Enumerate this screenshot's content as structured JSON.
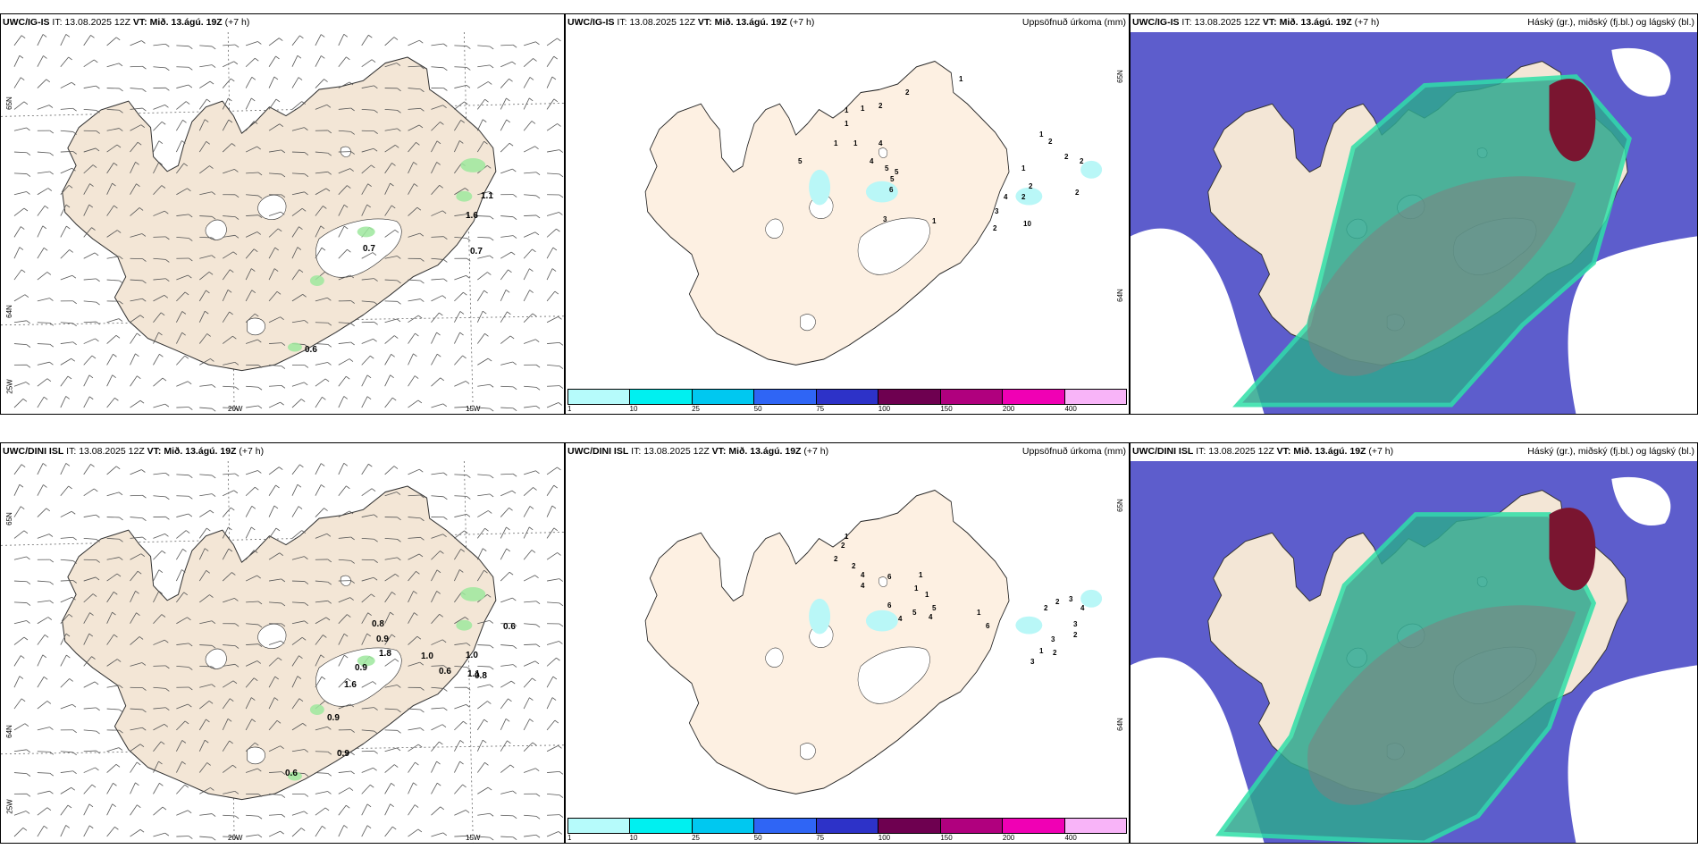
{
  "rows": [
    {
      "model": "UWC/IG-IS",
      "it_label": "IT:",
      "it_value": "13.08.2025 12Z",
      "vt_label": "VT:",
      "vt_value": "Mið. 13.ágú. 19Z",
      "lead": "(+7 h)",
      "wind_values": [
        "1.1",
        "1.6",
        "0.7",
        "0.7",
        "0.6"
      ],
      "precip_values": [
        "1",
        "1",
        "1",
        "2",
        "2",
        "1",
        "1",
        "1",
        "4",
        "5",
        "4",
        "5",
        "5",
        "5",
        "6",
        "1",
        "2",
        "1",
        "2",
        "2",
        "4",
        "3",
        "2",
        "10",
        "2",
        "2",
        "2",
        "3",
        "1"
      ]
    },
    {
      "model": "UWC/DINI ISL",
      "it_label": "IT:",
      "it_value": "13.08.2025 12Z",
      "vt_label": "VT:",
      "vt_value": "Mið. 13.ágú. 19Z",
      "lead": "(+7 h)",
      "wind_values": [
        "0.8",
        "0.9",
        "1.8",
        "0.9",
        "1.6",
        "1.0",
        "0.6",
        "1.0",
        "1.1",
        "0.6",
        "0.8",
        "0.9",
        "0.9",
        "0.6"
      ],
      "precip_values": [
        "1",
        "2",
        "2",
        "2",
        "4",
        "4",
        "6",
        "1",
        "1",
        "6",
        "1",
        "5",
        "5",
        "4",
        "4",
        "1",
        "6",
        "2",
        "2",
        "3",
        "3",
        "4",
        "3",
        "2",
        "1",
        "2",
        "3"
      ]
    }
  ],
  "precip_title": "Uppsöfnuð úrkoma (mm)",
  "cloud_title": "Háský (gr.), miðský (fj.bl.) og lágský (bl.)",
  "axis_labels": {
    "lat65": "65N",
    "lat64": "64N",
    "lon25": "25W",
    "lon20": "20W",
    "lon15": "15W"
  },
  "colorbar": {
    "ticks": [
      "1",
      "10",
      "25",
      "50",
      "75",
      "100",
      "150",
      "200",
      "400"
    ],
    "colors": [
      "#b6fbfb",
      "#00f0f0",
      "#00c8f0",
      "#2f65f5",
      "#2d32c8",
      "#6e0050",
      "#b0007e",
      "#f000b4",
      "#f8b4f8"
    ]
  },
  "colors": {
    "land": "#f3e6d6",
    "glacier": "#ffffff",
    "cloud_high": "#7f7f7f",
    "cloud_mid": "#5d5dcc",
    "cloud_low": "#2fa88f",
    "cloud_red": "#7a1530"
  }
}
